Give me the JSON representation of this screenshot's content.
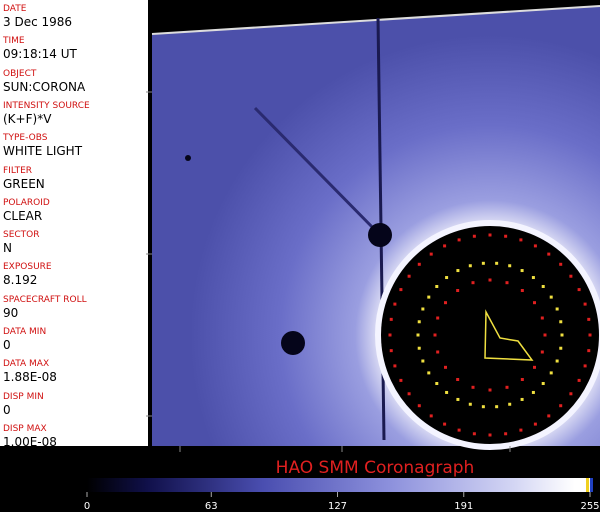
{
  "fields": [
    {
      "label": "DATE",
      "value": "3 Dec 1986"
    },
    {
      "label": "TIME",
      "value": "09:18:14 UT"
    },
    {
      "label": "OBJECT",
      "value": "SUN:CORONA"
    },
    {
      "label": "INTENSITY SOURCE",
      "value": "(K+F)*V"
    },
    {
      "label": "TYPE-OBS",
      "value": "WHITE LIGHT"
    },
    {
      "label": "FILTER",
      "value": "GREEN"
    },
    {
      "label": "POLAROID",
      "value": "CLEAR"
    },
    {
      "label": "SECTOR",
      "value": "N"
    },
    {
      "label": "EXPOSURE",
      "value": "8.192"
    },
    {
      "label": "SPACECRAFT ROLL",
      "value": "90"
    },
    {
      "label": "DATA MIN",
      "value": "0"
    },
    {
      "label": "DATA MAX",
      "value": "1.88E-08"
    },
    {
      "label": "DISP MIN",
      "value": "0"
    },
    {
      "label": "DISP MAX",
      "value": "1.00E-08"
    }
  ],
  "title": "HAO  SMM  Coronagraph",
  "colorbar": {
    "range": [
      0,
      255
    ],
    "ticks": [
      0,
      63,
      127,
      191,
      255
    ]
  }
}
